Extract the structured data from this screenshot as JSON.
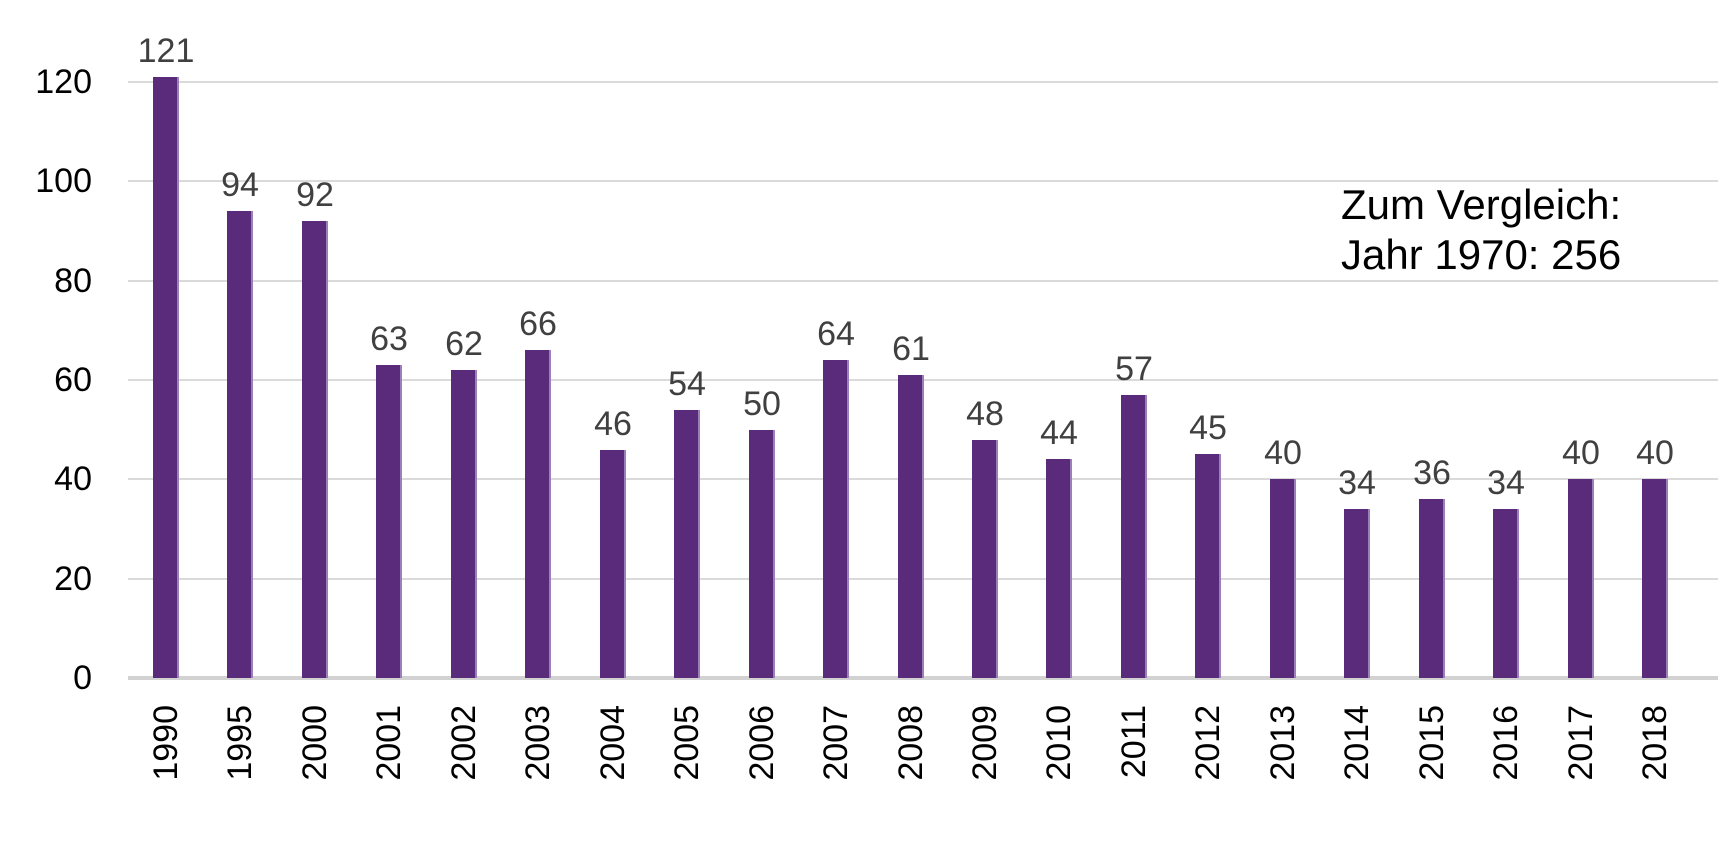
{
  "chart_data": {
    "type": "bar",
    "title": "",
    "xlabel": "",
    "ylabel": "",
    "categories": [
      "1990",
      "1995",
      "2000",
      "2001",
      "2002",
      "2003",
      "2004",
      "2005",
      "2006",
      "2007",
      "2008",
      "2009",
      "2010",
      "2011",
      "2012",
      "2013",
      "2014",
      "2015",
      "2016",
      "2017",
      "2018"
    ],
    "values": [
      121,
      94,
      92,
      63,
      62,
      66,
      46,
      54,
      50,
      64,
      61,
      48,
      44,
      57,
      45,
      40,
      34,
      36,
      34,
      40,
      40
    ],
    "ylim": [
      0,
      120
    ],
    "yticks": [
      0,
      20,
      40,
      60,
      80,
      100,
      120
    ],
    "grid": "horizontal",
    "legend": "none",
    "value_labels": "above-bars",
    "x_tick_rotation": -90,
    "annotation": {
      "line1": "Zum Vergleich:",
      "line2": "Jahr 1970: 256"
    },
    "colors": {
      "bar": "#5A2B7B",
      "bar_edge": "#9B7FB9",
      "value_label": "#404040",
      "axis_label": "#000000",
      "gridline": "#DADADA",
      "axis_line": "#D2D2D2",
      "background": "#FFFFFF"
    }
  }
}
